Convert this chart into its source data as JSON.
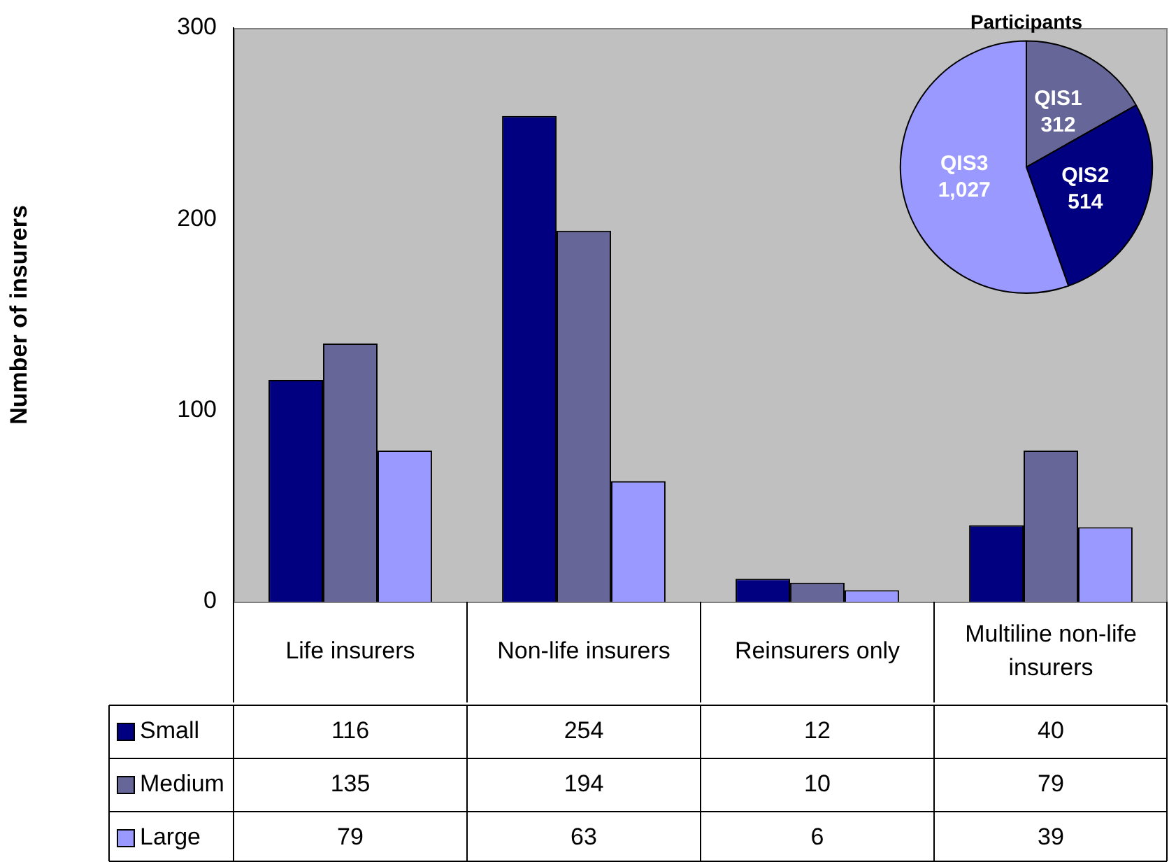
{
  "chart_data": [
    {
      "type": "bar",
      "ylabel": "Number of insurers",
      "categories": [
        "Life insurers",
        "Non-life insurers",
        "Reinsurers only",
        "Multiline non-life insurers"
      ],
      "series": [
        {
          "name": "Small",
          "color": "#000080",
          "values": [
            116,
            254,
            12,
            40
          ]
        },
        {
          "name": "Medium",
          "color": "#666699",
          "values": [
            135,
            194,
            10,
            79
          ]
        },
        {
          "name": "Large",
          "color": "#9999ff",
          "values": [
            79,
            63,
            6,
            39
          ]
        }
      ],
      "ylim": [
        0,
        300
      ],
      "yticks": [
        0,
        100,
        200,
        300
      ],
      "grid": false,
      "legend": "bottom",
      "data_labels": true
    },
    {
      "type": "pie",
      "title": "Participants",
      "categories": [
        "QIS1",
        "QIS2",
        "QIS3"
      ],
      "values": [
        312,
        514,
        1027
      ],
      "colors": [
        "#666699",
        "#000080",
        "#9999ff"
      ],
      "value_labels": [
        "312",
        "514",
        "1,027"
      ]
    }
  ]
}
